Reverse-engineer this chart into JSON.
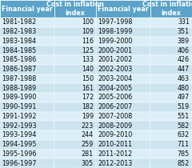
{
  "col_headers": [
    "Financial year",
    "Cost in inflation\nindex",
    "Financial year",
    "Cost in inflation\nindex"
  ],
  "left_years": [
    "1981-1982",
    "1982-1983",
    "1983-1984",
    "1984-1985",
    "1985-1986",
    "1986-1987",
    "1987-1988",
    "1988-1989",
    "1989-1990",
    "1990-1991",
    "1991-1992",
    "1992-1993",
    "1993-1994",
    "1994-1995",
    "1995-1996",
    "1996-1997"
  ],
  "left_values": [
    100,
    109,
    116,
    125,
    133,
    140,
    150,
    161,
    172,
    182,
    199,
    223,
    244,
    259,
    281,
    305
  ],
  "right_years": [
    "1997-1998",
    "1998-1999",
    "1999-2000",
    "2000-2001",
    "2001-2002",
    "2002-2003",
    "2003-2004",
    "2004-2005",
    "2005-2006",
    "2006-2007",
    "2007-2008",
    "2008-2009",
    "2009-2010",
    "2010-2011",
    "2011-2012",
    "2012-2013"
  ],
  "right_values": [
    331,
    351,
    389,
    406,
    426,
    447,
    463,
    480,
    497,
    519,
    551,
    582,
    632,
    711,
    785,
    852
  ],
  "header_bg": "#5ba3c9",
  "row_bg_light": "#cce4f0",
  "row_bg_dark": "#daeef7",
  "header_text_color": "#ffffff",
  "row_text_color": "#111111",
  "header_fontsize": 5.8,
  "row_fontsize": 5.8
}
